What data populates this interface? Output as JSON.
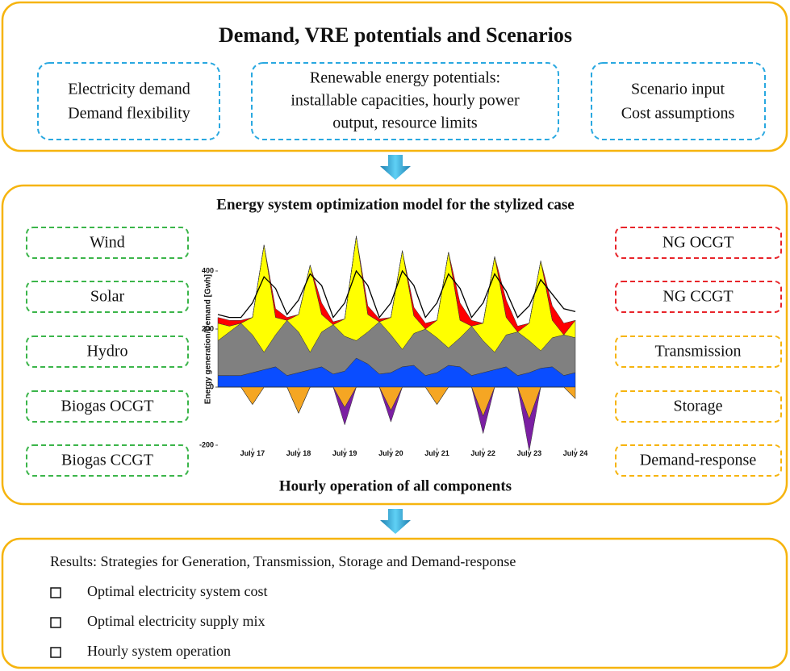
{
  "top": {
    "title": "Demand, VRE potentials and Scenarios",
    "boxes": [
      [
        "Electricity demand",
        "Demand flexibility"
      ],
      [
        "Renewable energy potentials:",
        "installable capacities, hourly power",
        "output, resource limits"
      ],
      [
        "Scenario input",
        "Cost assumptions"
      ]
    ]
  },
  "model": {
    "title": "Energy system optimization model for the stylized case",
    "left": [
      "Wind",
      "Solar",
      "Hydro",
      "Biogas OCGT",
      "Biogas CCGT"
    ],
    "right": [
      "NG OCGT",
      "NG CCGT",
      "Transmission",
      "Storage",
      "Demand-response"
    ],
    "caption": "Hourly operation of all components"
  },
  "results": {
    "title": "Results: Strategies for Generation, Transmission, Storage and Demand-response",
    "items": [
      "Optimal electricity system cost",
      "Optimal electricity supply mix",
      "Hourly system operation"
    ]
  },
  "chart_data": {
    "type": "area",
    "ylabel": "Energy generation/Demand [Gwh]",
    "x": [
      -0.75,
      -0.5,
      -0.25,
      0,
      0.25,
      0.5,
      0.75,
      1,
      1.25,
      1.5,
      1.75,
      2,
      2.25,
      2.5,
      2.75,
      3,
      3.25,
      3.5,
      3.75,
      4,
      4.25,
      4.5,
      4.75,
      5,
      5.25,
      5.5,
      5.75,
      6,
      6.25,
      6.5,
      6.75,
      7
    ],
    "xlim": [
      -0.75,
      7
    ],
    "ylim": [
      -210,
      540
    ],
    "xticks": [
      {
        "value": 0,
        "label": "July 17"
      },
      {
        "value": 1,
        "label": "July 18"
      },
      {
        "value": 2,
        "label": "July 19"
      },
      {
        "value": 3,
        "label": "July 20"
      },
      {
        "value": 4,
        "label": "July 21"
      },
      {
        "value": 5,
        "label": "July 22"
      },
      {
        "value": 6,
        "label": "July 23"
      },
      {
        "value": 7,
        "label": "July 24"
      }
    ],
    "yticks": [
      -200,
      0,
      200,
      400
    ],
    "series": [
      {
        "color": "#0a4dff",
        "values": [
          40,
          40,
          40,
          50,
          60,
          70,
          40,
          50,
          60,
          70,
          45,
          55,
          100,
          80,
          45,
          50,
          70,
          75,
          40,
          50,
          75,
          70,
          40,
          50,
          60,
          70,
          40,
          50,
          65,
          70,
          40,
          50
        ]
      },
      {
        "color": "#808080",
        "values": [
          120,
          150,
          180,
          130,
          60,
          110,
          190,
          140,
          60,
          120,
          170,
          120,
          60,
          110,
          180,
          130,
          60,
          110,
          160,
          120,
          60,
          100,
          170,
          110,
          60,
          110,
          150,
          110,
          60,
          100,
          140,
          120
        ]
      },
      {
        "color": "#ffff00",
        "values": [
          60,
          20,
          0,
          60,
          370,
          60,
          0,
          60,
          300,
          60,
          0,
          60,
          360,
          60,
          0,
          60,
          340,
          60,
          0,
          60,
          330,
          60,
          0,
          60,
          330,
          60,
          0,
          60,
          310,
          60,
          0,
          60
        ]
      },
      {
        "color": "#ff0000",
        "values": [
          20,
          20,
          10,
          0,
          0,
          30,
          10,
          0,
          0,
          40,
          10,
          0,
          0,
          30,
          10,
          0,
          0,
          30,
          20,
          0,
          0,
          60,
          20,
          0,
          0,
          60,
          20,
          0,
          0,
          50,
          40,
          0
        ]
      },
      {
        "color": "#f5a623",
        "values": [
          0,
          0,
          0,
          -60,
          0,
          0,
          0,
          -90,
          0,
          0,
          0,
          -70,
          0,
          0,
          0,
          -80,
          0,
          0,
          0,
          -60,
          0,
          0,
          0,
          -100,
          0,
          0,
          0,
          -110,
          0,
          0,
          0,
          -40
        ]
      },
      {
        "color": "#7b1fa2",
        "values": [
          0,
          0,
          0,
          0,
          0,
          0,
          0,
          0,
          0,
          0,
          0,
          -60,
          0,
          0,
          0,
          -40,
          0,
          0,
          0,
          0,
          0,
          0,
          0,
          -60,
          0,
          0,
          0,
          -110,
          0,
          0,
          0,
          0
        ]
      },
      {
        "type": "line",
        "color": "#000000",
        "values": [
          250,
          240,
          240,
          290,
          380,
          340,
          250,
          300,
          390,
          350,
          240,
          290,
          400,
          350,
          240,
          290,
          400,
          350,
          240,
          290,
          390,
          340,
          240,
          290,
          390,
          330,
          240,
          280,
          370,
          320,
          270,
          260
        ]
      }
    ]
  }
}
